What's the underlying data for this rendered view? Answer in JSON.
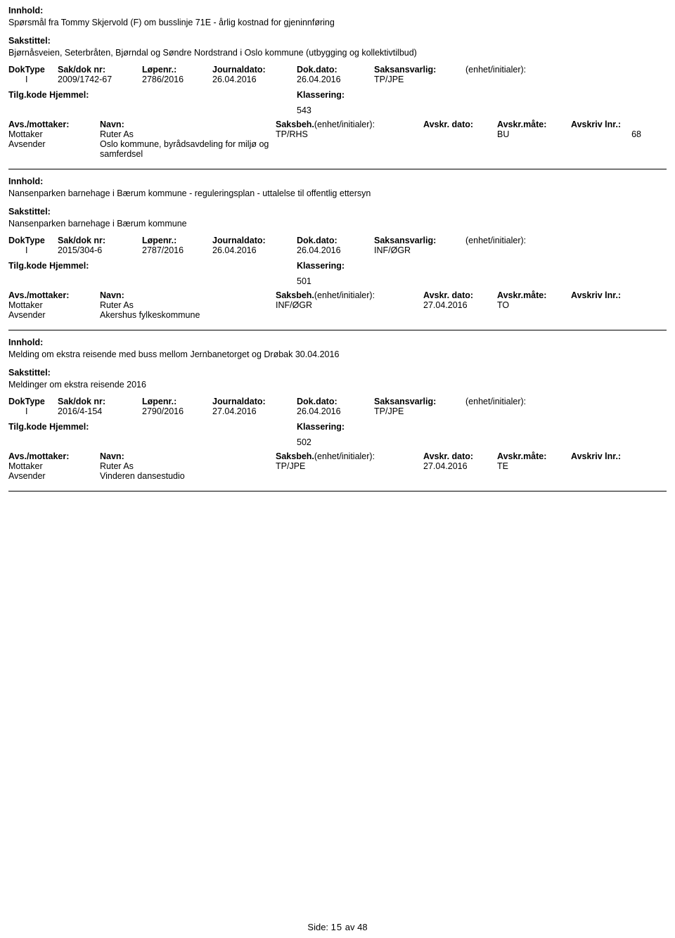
{
  "labels": {
    "innhold": "Innhold:",
    "sakstittel": "Sakstittel:",
    "doktype": "DokType",
    "sakdok": "Sak/dok nr:",
    "lopenr": "Løpenr.:",
    "journaldato": "Journaldato:",
    "dokdato": "Dok.dato:",
    "saksansvarlig": "Saksansvarlig:",
    "enhet": "(enhet/initialer):",
    "tilgkode": "Tilg.kode",
    "hjemmel": "Hjemmel:",
    "klassering": "Klassering:",
    "avsmottaker": "Avs./mottaker:",
    "navn": "Navn:",
    "saksbeh": "Saksbeh.",
    "enhet2": "(enhet/initialer):",
    "avskrdato": "Avskr. dato:",
    "avskrmate": "Avskr.måte:",
    "avskrivlnr": "Avskriv lnr.:",
    "mottaker": "Mottaker",
    "avsender": "Avsender"
  },
  "entries": [
    {
      "innhold": "Spørsmål fra Tommy Skjervold (F) om busslinje 71E - årlig kostnad for gjeninnføring",
      "sakstittel": "Bjørnåsveien, Seterbråten, Bjørndal og Søndre Nordstrand i Oslo kommune (utbygging og kollektivtilbud)",
      "doktype": "I",
      "sakdok": "2009/1742-67",
      "lopenr": "2786/2016",
      "journaldato": "26.04.2016",
      "dokdato": "26.04.2016",
      "saksansvarlig": "TP/JPE",
      "klassering": "543",
      "mottaker_navn": "Ruter As",
      "avsender_navn": "Oslo kommune, byrådsavdeling for miljø og samferdsel",
      "saksbeh_val": "TP/RHS",
      "avskrdato_val": "",
      "avskrmate_val": "BU",
      "avskrivlnr_val": "68"
    },
    {
      "innhold": "Nansenparken barnehage i Bærum kommune - reguleringsplan - uttalelse til offentlig ettersyn",
      "sakstittel": "Nansenparken barnehage i Bærum kommune",
      "doktype": "I",
      "sakdok": "2015/304-6",
      "lopenr": "2787/2016",
      "journaldato": "26.04.2016",
      "dokdato": "26.04.2016",
      "saksansvarlig": "INF/ØGR",
      "klassering": "501",
      "mottaker_navn": "Ruter As",
      "avsender_navn": "Akershus fylkeskommune",
      "saksbeh_val": "INF/ØGR",
      "avskrdato_val": "27.04.2016",
      "avskrmate_val": "TO",
      "avskrivlnr_val": ""
    },
    {
      "innhold": "Melding om ekstra reisende med buss mellom Jernbanetorget og Drøbak 30.04.2016",
      "sakstittel": "Meldinger om ekstra reisende 2016",
      "doktype": "I",
      "sakdok": "2016/4-154",
      "lopenr": "2790/2016",
      "journaldato": "27.04.2016",
      "dokdato": "26.04.2016",
      "saksansvarlig": "TP/JPE",
      "klassering": "502",
      "mottaker_navn": "Ruter As",
      "avsender_navn": "Vinderen dansestudio",
      "saksbeh_val": "TP/JPE",
      "avskrdato_val": "27.04.2016",
      "avskrmate_val": "TE",
      "avskrivlnr_val": ""
    }
  ],
  "footer": {
    "side_label": "Side:",
    "page_cur": "15",
    "page_sep": "av",
    "page_total": "48"
  }
}
